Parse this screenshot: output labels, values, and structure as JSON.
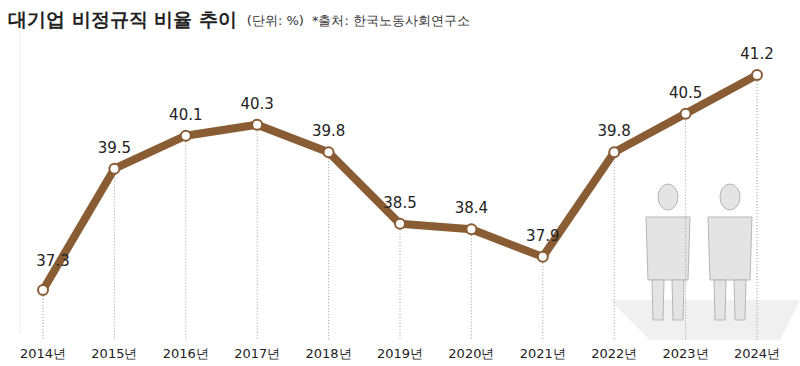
{
  "chart_data": {
    "type": "line",
    "title": "대기업 비정규직 비율 추이",
    "subtitle": "(단위: %)",
    "source": "*출처: 한국노동사회연구소",
    "categories": [
      "2014년",
      "2015년",
      "2016년",
      "2017년",
      "2018년",
      "2019년",
      "2020년",
      "2021년",
      "2022년",
      "2023년",
      "2024년"
    ],
    "values": [
      37.3,
      39.5,
      40.1,
      40.3,
      39.8,
      38.5,
      38.4,
      37.9,
      39.8,
      40.5,
      41.2
    ],
    "color": "#8a5c34",
    "marker": "circle",
    "ylim": [
      36.5,
      42
    ],
    "yticks": [],
    "tick_labels": "x",
    "data_labels": true,
    "grid": true
  }
}
